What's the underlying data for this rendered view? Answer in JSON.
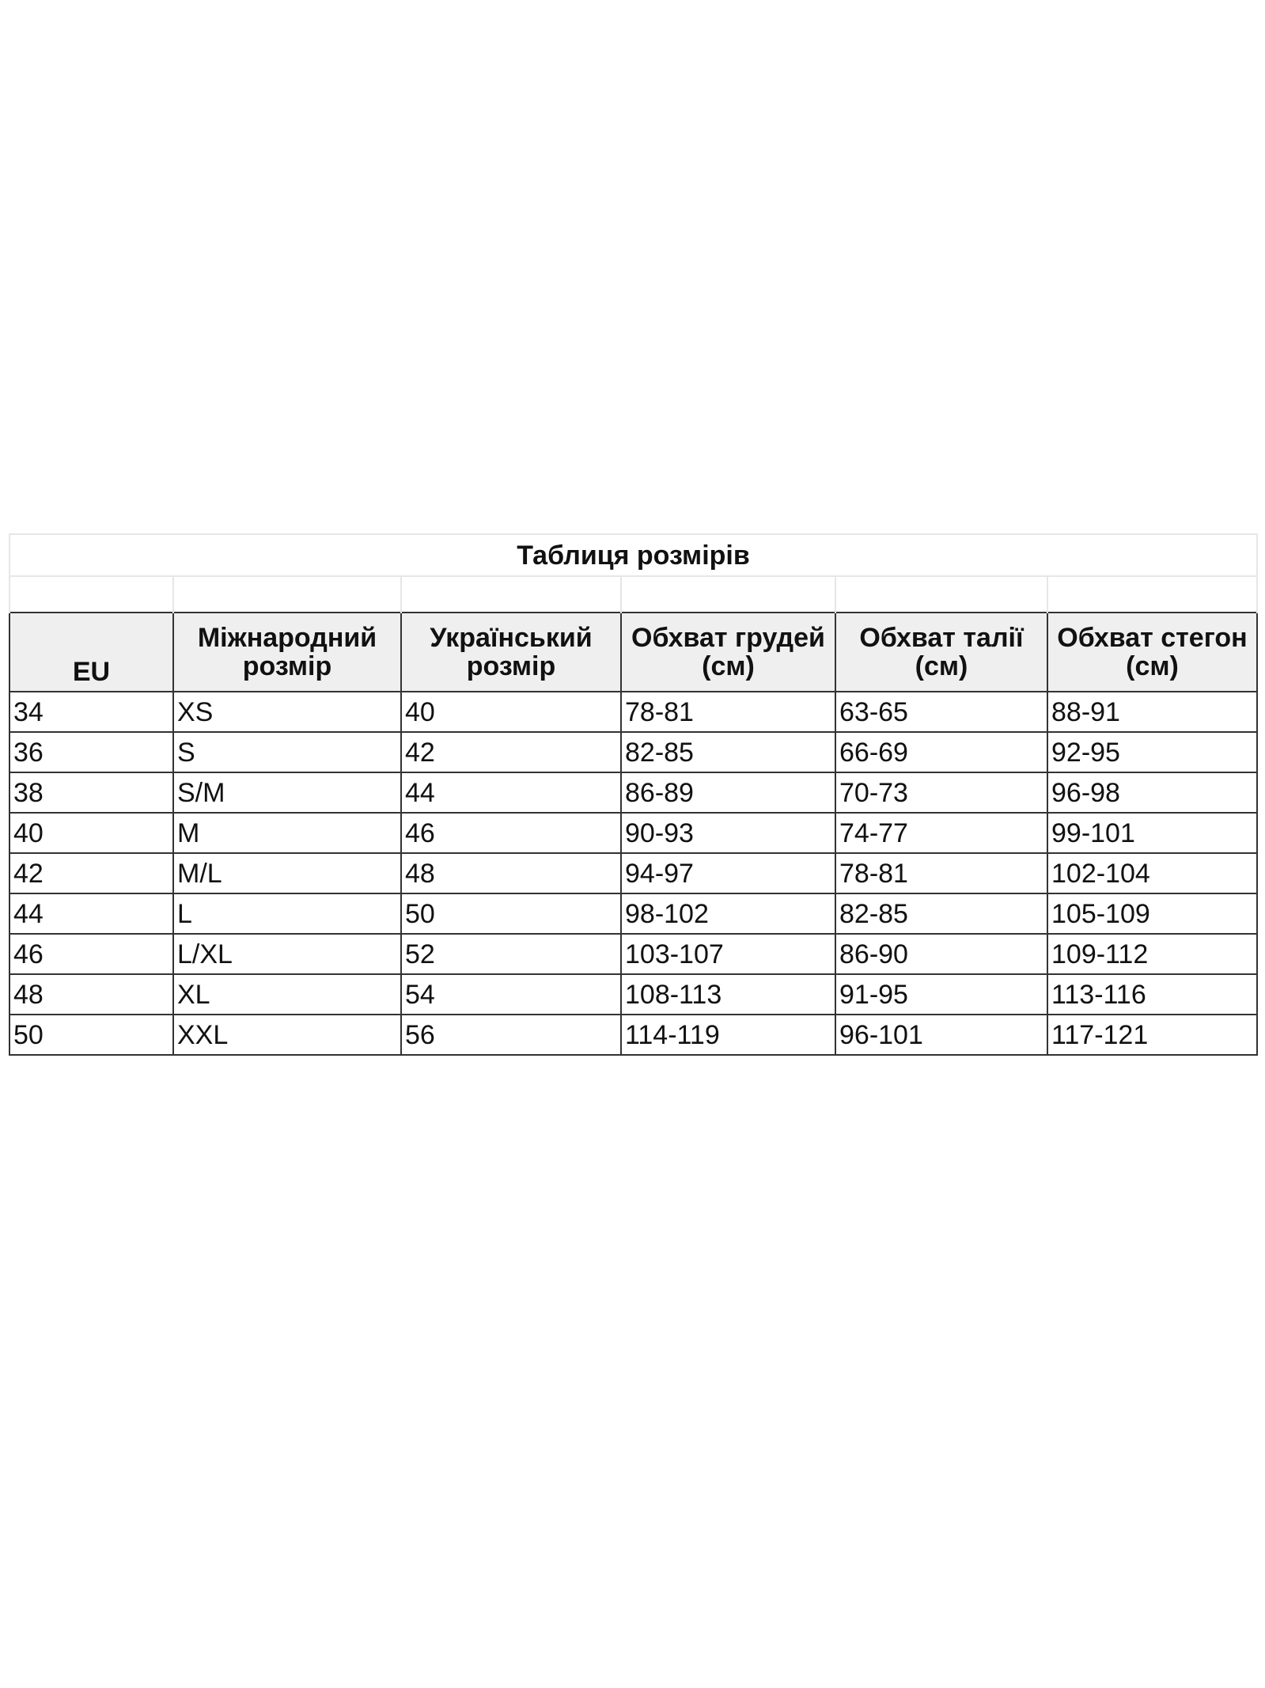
{
  "title": "Таблиця розмірів",
  "columns": [
    "EU",
    "Міжнародний розмір",
    "Український розмір",
    "Обхват грудей (см)",
    "Обхват талії (см)",
    "Обхват стегон (см)"
  ],
  "rows": [
    [
      "34",
      "XS",
      "40",
      "78-81",
      "63-65",
      "88-91"
    ],
    [
      "36",
      "S",
      "42",
      "82-85",
      "66-69",
      "92-95"
    ],
    [
      "38",
      "S/M",
      "44",
      "86-89",
      "70-73",
      "96-98"
    ],
    [
      "40",
      "M",
      "46",
      "90-93",
      "74-77",
      "99-101"
    ],
    [
      "42",
      "M/L",
      "48",
      "94-97",
      "78-81",
      "102-104"
    ],
    [
      "44",
      "L",
      "50",
      "98-102",
      "82-85",
      "105-109"
    ],
    [
      "46",
      "L/XL",
      "52",
      "103-107",
      "86-90",
      "109-112"
    ],
    [
      "48",
      "XL",
      "54",
      "108-113",
      "91-95",
      "113-116"
    ],
    [
      "50",
      "XXL",
      "56",
      "114-119",
      "96-101",
      "117-121"
    ]
  ]
}
